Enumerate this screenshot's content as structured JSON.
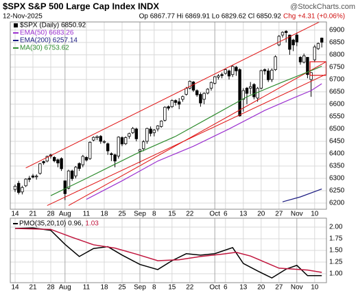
{
  "chart_data": [
    {
      "type": "candlestick",
      "title": "$SPX S&P 500 Large Cap Index INDX",
      "source": "@StockCharts.com",
      "date": "12-Nov-2025",
      "quote": "Op 6867.77 Hi 6869.91 Lo 6829.62 Cl 6850.92",
      "change": "Chg +4.31 (+0.06%)",
      "name": "$SPX (Daily) 6850.92",
      "ylim": [
        6175,
        6933
      ],
      "yticks": [
        6200,
        6250,
        6300,
        6350,
        6400,
        6450,
        6500,
        6550,
        6600,
        6650,
        6700,
        6750,
        6800,
        6850,
        6900
      ],
      "xticks": [
        {
          "value": 0,
          "label": "14"
        },
        {
          "value": 5,
          "label": "21"
        },
        {
          "value": 10,
          "label": "28"
        },
        {
          "value": 14,
          "label": "Aug"
        },
        {
          "value": 20,
          "label": "11"
        },
        {
          "value": 25,
          "label": "18"
        },
        {
          "value": 30,
          "label": "25"
        },
        {
          "value": 35,
          "label": "Sep"
        },
        {
          "value": 39,
          "label": "8"
        },
        {
          "value": 44,
          "label": "15"
        },
        {
          "value": 49,
          "label": "22"
        },
        {
          "value": 56,
          "label": "Oct"
        },
        {
          "value": 59,
          "label": "6"
        },
        {
          "value": 64,
          "label": "13"
        },
        {
          "value": 69,
          "label": "20"
        },
        {
          "value": 74,
          "label": "27"
        },
        {
          "value": 79,
          "label": "Nov"
        },
        {
          "value": 84,
          "label": "10"
        }
      ],
      "month_ticks": [
        3,
        7,
        11,
        16
      ],
      "open": [
        6255,
        6280,
        6245,
        6270,
        6300,
        6310,
        6306,
        6320,
        6368,
        6370,
        6395,
        6385,
        6375,
        6380,
        6290,
        6260,
        6330,
        6310,
        6360,
        6355,
        6385,
        6380,
        6455,
        6465,
        6470,
        6448,
        6440,
        6400,
        6395,
        6390,
        6465,
        6440,
        6470,
        6485,
        6500,
        6410,
        6420,
        6450,
        6500,
        6485,
        6500,
        6510,
        6535,
        6590,
        6590,
        6615,
        6610,
        6620,
        6640,
        6665,
        6690,
        6655,
        6640,
        6620,
        6645,
        6665,
        6685,
        6710,
        6720,
        6725,
        6735,
        6720,
        6750,
        6740,
        6620,
        6665,
        6665,
        6680,
        6625,
        6665,
        6740,
        6735,
        6700,
        6740,
        6840,
        6880,
        6895,
        6880,
        6860,
        6880,
        6790,
        6770,
        6790,
        6700,
        6780,
        6825,
        6867.77
      ],
      "high": [
        6275,
        6290,
        6270,
        6300,
        6310,
        6318,
        6316,
        6362,
        6372,
        6392,
        6400,
        6390,
        6380,
        6385,
        6290,
        6335,
        6335,
        6350,
        6365,
        6395,
        6390,
        6450,
        6470,
        6474,
        6475,
        6455,
        6445,
        6405,
        6400,
        6470,
        6470,
        6470,
        6485,
        6508,
        6505,
        6420,
        6455,
        6505,
        6510,
        6500,
        6515,
        6535,
        6592,
        6595,
        6620,
        6620,
        6625,
        6635,
        6670,
        6696,
        6694,
        6660,
        6648,
        6648,
        6665,
        6692,
        6714,
        6722,
        6728,
        6745,
        6740,
        6758,
        6755,
        6745,
        6665,
        6670,
        6690,
        6685,
        6670,
        6740,
        6745,
        6745,
        6745,
        6798,
        6880,
        6895,
        6900,
        6882,
        6865,
        6890,
        6795,
        6805,
        6790,
        6730,
        6840,
        6850,
        6869.91
      ],
      "low": [
        6245,
        6235,
        6235,
        6265,
        6285,
        6300,
        6295,
        6315,
        6355,
        6365,
        6380,
        6365,
        6345,
        6330,
        6212,
        6255,
        6290,
        6300,
        6330,
        6345,
        6368,
        6375,
        6450,
        6455,
        6440,
        6440,
        6395,
        6370,
        6345,
        6380,
        6430,
        6435,
        6460,
        6480,
        6450,
        6360,
        6410,
        6440,
        6470,
        6470,
        6490,
        6505,
        6530,
        6575,
        6585,
        6595,
        6580,
        6610,
        6635,
        6660,
        6650,
        6630,
        6590,
        6600,
        6640,
        6655,
        6680,
        6700,
        6705,
        6720,
        6700,
        6710,
        6715,
        6550,
        6570,
        6600,
        6640,
        6620,
        6610,
        6660,
        6720,
        6690,
        6690,
        6735,
        6835,
        6870,
        6850,
        6800,
        6815,
        6835,
        6760,
        6765,
        6705,
        6630,
        6770,
        6820,
        6829.62
      ],
      "close": [
        6268,
        6243,
        6263,
        6297,
        6296,
        6305,
        6309,
        6359,
        6363,
        6389,
        6390,
        6371,
        6362,
        6339,
        6238,
        6330,
        6299,
        6345,
        6340,
        6389,
        6374,
        6446,
        6466,
        6469,
        6450,
        6449,
        6411,
        6396,
        6370,
        6467,
        6439,
        6465,
        6481,
        6502,
        6460,
        6416,
        6448,
        6502,
        6482,
        6495,
        6512,
        6532,
        6588,
        6584,
        6615,
        6607,
        6600,
        6631,
        6664,
        6693,
        6657,
        6638,
        6605,
        6644,
        6661,
        6688,
        6711,
        6715,
        6716,
        6740,
        6714,
        6753,
        6735,
        6553,
        6655,
        6644,
        6671,
        6630,
        6664,
        6736,
        6735,
        6699,
        6738,
        6792,
        6875,
        6891,
        6890,
        6822,
        6840,
        6852,
        6771,
        6796,
        6720,
        6728,
        6832,
        6846,
        6850.92
      ],
      "series": [
        {
          "name": "EMA(50) 6683.26",
          "color": "#9b30d0",
          "x": [
            20,
            30,
            40,
            50,
            60,
            70,
            78,
            83,
            86
          ],
          "values": [
            6215,
            6290,
            6370,
            6430,
            6500,
            6575,
            6625,
            6655,
            6683.26
          ]
        },
        {
          "name": "EMA(200) 6257.14",
          "color": "#1a1a80",
          "x": [
            75,
            80,
            86
          ],
          "values": [
            6205,
            6225,
            6257.14
          ]
        },
        {
          "name": "MA(30) 6753.62",
          "color": "#2e8b2e",
          "x": [
            10,
            20,
            34,
            45,
            55,
            65,
            75,
            82,
            86
          ],
          "values": [
            6230,
            6300,
            6400,
            6470,
            6550,
            6630,
            6690,
            6730,
            6753.62
          ]
        }
      ],
      "trendlines": [
        {
          "color": "#e01010",
          "x": [
            3,
            87
          ],
          "values": [
            6342,
            6945
          ]
        },
        {
          "color": "#e01010",
          "x": [
            9,
            87
          ],
          "values": [
            6190,
            6720
          ]
        },
        {
          "color": "#e01010",
          "x": [
            15,
            87
          ],
          "values": [
            6190,
            6770
          ]
        }
      ],
      "highlight": {
        "color": "#e01010",
        "x": [
          82.7,
          87.2
        ],
        "values": [
          6717,
          6772
        ]
      }
    },
    {
      "type": "line",
      "ylim": [
        0.81,
        2.19
      ],
      "yticks": [
        {
          "value": 1,
          "label": "1.00"
        },
        {
          "value": 1.25,
          "label": "1.25"
        },
        {
          "value": 1.5,
          "label": "1.50"
        },
        {
          "value": 1.75,
          "label": "1.75"
        },
        {
          "value": 2,
          "label": "2.00"
        }
      ],
      "series": [
        {
          "name": "PMO(35,20,10) 0.96,",
          "color": "#000000",
          "x": [
            0,
            5,
            10,
            14,
            18,
            22,
            26,
            30,
            35,
            40,
            44,
            48,
            52,
            56,
            61,
            64,
            68,
            72,
            76,
            79,
            82,
            86
          ],
          "values": [
            1.97,
            1.98,
            1.93,
            1.63,
            1.37,
            1.54,
            1.58,
            1.4,
            1.2,
            1.09,
            1.28,
            1.43,
            1.4,
            1.43,
            1.56,
            1.22,
            1.06,
            0.91,
            1.1,
            1.18,
            0.96,
            0.96
          ]
        },
        {
          "name": "1.03",
          "color": "#c0143c",
          "x": [
            0,
            10,
            16,
            22,
            28,
            34,
            40,
            46,
            52,
            58,
            62,
            66,
            70,
            74,
            78,
            82,
            86
          ],
          "values": [
            1.97,
            1.95,
            1.78,
            1.62,
            1.55,
            1.42,
            1.28,
            1.3,
            1.37,
            1.42,
            1.46,
            1.38,
            1.25,
            1.12,
            1.1,
            1.08,
            1.03
          ]
        }
      ]
    }
  ]
}
